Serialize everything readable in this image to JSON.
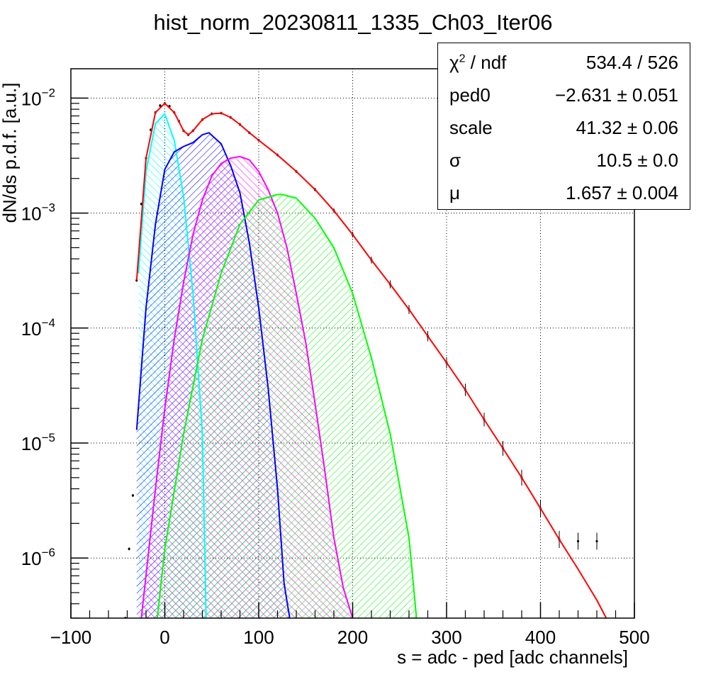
{
  "chart_data": {
    "type": "line",
    "title": "hist_norm_20230811_1335_Ch03_Iter06",
    "xlabel": "s = adc - ped [adc channels]",
    "ylabel": "dN/ds p.d.f. [a.u.]",
    "xlim": [
      -100,
      500
    ],
    "ylim": [
      3e-07,
      0.018
    ],
    "yscale": "log",
    "grid": true,
    "x_ticks": [
      -100,
      0,
      100,
      200,
      300,
      400,
      500
    ],
    "x_tick_labels": [
      "−100",
      "0",
      "100",
      "200",
      "300",
      "400",
      "500"
    ],
    "y_ticks": [
      {
        "value": 1e-06,
        "base": "10",
        "exp": "−6"
      },
      {
        "value": 1e-05,
        "base": "10",
        "exp": "−5"
      },
      {
        "value": 0.0001,
        "base": "10",
        "exp": "−4"
      },
      {
        "value": 0.001,
        "base": "10",
        "exp": "−3"
      },
      {
        "value": 0.01,
        "base": "10",
        "exp": "−2"
      }
    ],
    "series": [
      {
        "color": "#00ffff",
        "fill": "hatch",
        "x": [
          -28,
          -20,
          -10,
          0,
          10,
          20,
          30,
          40,
          44
        ],
        "y": [
          0.0003,
          0.0023,
          0.006,
          0.0073,
          0.0043,
          0.0014,
          0.0002,
          1.2e-05,
          3e-07
        ]
      },
      {
        "color": "#0000ff",
        "fill": "hatch",
        "x": [
          -30,
          -20,
          -10,
          0,
          10,
          20,
          30,
          40,
          47,
          60,
          70,
          80,
          90,
          100,
          110,
          120,
          127,
          133
        ],
        "y": [
          1.3e-05,
          0.00015,
          0.0008,
          0.0024,
          0.0034,
          0.0038,
          0.0041,
          0.0048,
          0.005,
          0.004,
          0.0026,
          0.0015,
          0.00055,
          0.00015,
          3e-05,
          4e-06,
          6e-07,
          3e-07
        ]
      },
      {
        "color": "#ff00ff",
        "fill": "hatch",
        "x": [
          -25,
          -10,
          0,
          10,
          20,
          30,
          40,
          50,
          60,
          70,
          80,
          90,
          100,
          110,
          120,
          130,
          140,
          150,
          160,
          170,
          180,
          190,
          200
        ],
        "y": [
          3e-07,
          4e-06,
          2e-05,
          8e-05,
          0.00025,
          0.00065,
          0.0013,
          0.0021,
          0.0027,
          0.003,
          0.0031,
          0.0029,
          0.0023,
          0.0016,
          0.001,
          0.0005,
          0.0002,
          7.5e-05,
          2.2e-05,
          6e-06,
          1.5e-06,
          5.5e-07,
          3e-07
        ]
      },
      {
        "color": "#00ff00",
        "fill": "hatch",
        "x": [
          -8,
          0,
          20,
          40,
          60,
          80,
          100,
          120,
          125,
          140,
          160,
          180,
          200,
          220,
          240,
          260,
          268
        ],
        "y": [
          3e-07,
          1.2e-06,
          1.2e-05,
          8e-05,
          0.0003,
          0.0008,
          0.0013,
          0.00145,
          0.00145,
          0.00135,
          0.0009,
          0.0005,
          0.0002,
          5.5e-05,
          1.2e-05,
          1.5e-06,
          3e-07
        ]
      },
      {
        "color": "#ff0000",
        "fill": "none",
        "x": [
          -30,
          -20,
          -10,
          0,
          10,
          20,
          25,
          30,
          40,
          50,
          60,
          70,
          80,
          90,
          100,
          120,
          140,
          160,
          180,
          200,
          220,
          240,
          260,
          280,
          300,
          320,
          340,
          360,
          380,
          400,
          420,
          440,
          460,
          470
        ],
        "y": [
          0.00026,
          0.003,
          0.0075,
          0.009,
          0.0075,
          0.0052,
          0.0048,
          0.0052,
          0.0065,
          0.0073,
          0.0074,
          0.0068,
          0.0059,
          0.005,
          0.0043,
          0.0032,
          0.0023,
          0.0016,
          0.00105,
          0.00065,
          0.00039,
          0.00024,
          0.000145,
          8.5e-05,
          5e-05,
          2.9e-05,
          1.6e-05,
          9e-06,
          5e-06,
          2.7e-06,
          1.45e-06,
          8e-07,
          4.3e-07,
          3e-07
        ]
      }
    ],
    "data_points": {
      "color": "#000000",
      "x": [
        -42,
        -38,
        -34,
        -30,
        -25,
        -20,
        -15,
        -10,
        -5,
        0,
        5,
        10,
        15,
        20,
        25,
        30,
        40,
        50,
        60,
        70,
        80,
        90,
        100,
        120,
        140,
        160,
        180,
        200,
        220,
        240,
        260,
        280,
        300,
        320,
        340,
        360,
        380,
        400,
        420,
        440,
        460
      ],
      "y": [
        3e-07,
        1.2e-06,
        3.5e-06,
        0.00026,
        0.0012,
        0.003,
        0.0053,
        0.0075,
        0.0086,
        0.009,
        0.0085,
        0.0075,
        0.0063,
        0.0052,
        0.0048,
        0.0052,
        0.0065,
        0.0073,
        0.0074,
        0.0068,
        0.0059,
        0.005,
        0.0043,
        0.0032,
        0.0023,
        0.0016,
        0.00105,
        0.00065,
        0.00039,
        0.00024,
        0.000145,
        8.5e-05,
        5e-05,
        2.9e-05,
        1.6e-05,
        9e-06,
        5e-06,
        2.7e-06,
        1.45e-06,
        1.4e-06,
        1.4e-06
      ]
    },
    "stats_box": {
      "placement": "top-right",
      "rows": [
        {
          "name_sym": "χ",
          "name_sup": "2",
          "name_rest": " / ndf",
          "value": "534.4 / 526"
        },
        {
          "name_sym": "",
          "name_sup": "",
          "name_rest": "ped0",
          "value": "−2.631 ± 0.051"
        },
        {
          "name_sym": "",
          "name_sup": "",
          "name_rest": "scale",
          "value": "41.32 ± 0.06"
        },
        {
          "name_sym": "σ",
          "name_sup": "",
          "name_rest": "",
          "value": "10.5 ± 0.0"
        },
        {
          "name_sym": "μ",
          "name_sup": "",
          "name_rest": "",
          "value": "1.657 ± 0.004"
        }
      ]
    }
  }
}
